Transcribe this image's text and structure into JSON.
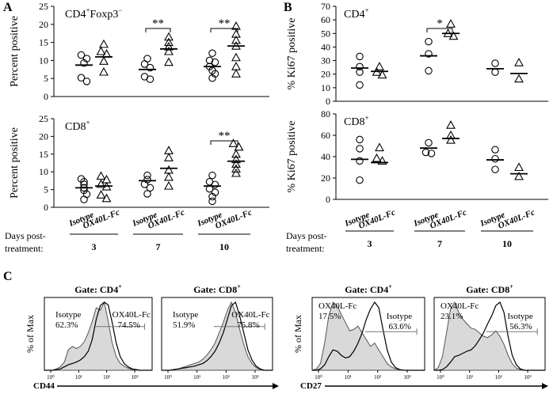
{
  "panel_letters": [
    "A",
    "B",
    "C"
  ],
  "x_groups": {
    "arms": [
      "Isotype",
      "OX40L-Fc"
    ],
    "days": [
      "3",
      "7",
      "10"
    ],
    "days_label": [
      "Days post-",
      "treatment:"
    ]
  },
  "chart_data": [
    {
      "id": "A-top",
      "type": "scatter",
      "panel": "A",
      "title": "CD4+Foxp3−",
      "ylabel": "Percent positive",
      "ylim": [
        0,
        25
      ],
      "yticks": [
        0,
        5,
        10,
        15,
        20,
        25
      ],
      "groups": [
        {
          "day": "3",
          "arm": "Isotype",
          "marker": "circle",
          "mean": 8.7,
          "values": [
            11.5,
            10.5,
            9.3,
            5.2,
            4.2
          ]
        },
        {
          "day": "3",
          "arm": "OX40L-Fc",
          "marker": "triangle",
          "mean": 11.0,
          "values": [
            14.5,
            12.5,
            11.8,
            9.8,
            6.8
          ]
        },
        {
          "day": "7",
          "arm": "Isotype",
          "marker": "circle",
          "mean": 7.5,
          "values": [
            10.5,
            9.0,
            8.0,
            5.5,
            4.8
          ]
        },
        {
          "day": "7",
          "arm": "OX40L-Fc",
          "marker": "triangle",
          "mean": 13.2,
          "values": [
            16.5,
            15.0,
            13.8,
            12.5,
            9.5
          ]
        },
        {
          "day": "10",
          "arm": "Isotype",
          "marker": "circle",
          "mean": 8.3,
          "values": [
            12.0,
            10.0,
            9.5,
            8.3,
            7.2,
            6.3,
            5.1
          ]
        },
        {
          "day": "10",
          "arm": "OX40L-Fc",
          "marker": "triangle",
          "mean": 14.0,
          "values": [
            19.5,
            17.3,
            15.6,
            14.0,
            10.8,
            8.3,
            6.3
          ]
        }
      ],
      "significance": [
        {
          "day": "7",
          "label": "**"
        },
        {
          "day": "10",
          "label": "**"
        }
      ]
    },
    {
      "id": "A-bottom",
      "type": "scatter",
      "panel": "A",
      "title": "CD8+",
      "ylabel": "Percent positive",
      "ylim": [
        0,
        25
      ],
      "yticks": [
        0,
        5,
        10,
        15,
        20,
        25
      ],
      "groups": [
        {
          "day": "3",
          "arm": "Isotype",
          "marker": "circle",
          "mean": 5.5,
          "values": [
            8.0,
            7.2,
            6.5,
            5.5,
            4.8,
            3.7,
            2.2
          ]
        },
        {
          "day": "3",
          "arm": "OX40L-Fc",
          "marker": "triangle",
          "mean": 6.0,
          "values": [
            8.8,
            7.8,
            6.5,
            5.8,
            3.5,
            2.5
          ]
        },
        {
          "day": "7",
          "arm": "Isotype",
          "marker": "circle",
          "mean": 7.5,
          "values": [
            9.0,
            7.8,
            6.5,
            5.5,
            3.8
          ]
        },
        {
          "day": "7",
          "arm": "OX40L-Fc",
          "marker": "triangle",
          "mean": 11.0,
          "values": [
            16.0,
            14.0,
            10.5,
            8.5,
            6.0
          ]
        },
        {
          "day": "10",
          "arm": "Isotype",
          "marker": "circle",
          "mean": 6.0,
          "values": [
            9.0,
            7.2,
            6.4,
            5.2,
            4.2,
            3.0,
            1.7
          ]
        },
        {
          "day": "10",
          "arm": "OX40L-Fc",
          "marker": "triangle",
          "mean": 13.0,
          "values": [
            18.0,
            17.0,
            15.0,
            13.5,
            12.2,
            10.8,
            9.6
          ]
        }
      ],
      "significance": [
        {
          "day": "10",
          "label": "**"
        }
      ]
    },
    {
      "id": "B-top",
      "type": "scatter",
      "panel": "B",
      "title": "CD4+",
      "ylabel": "% Ki67 positive",
      "ylim": [
        0,
        70
      ],
      "yticks": [
        0,
        10,
        20,
        30,
        40,
        50,
        60,
        70
      ],
      "groups": [
        {
          "day": "3",
          "arm": "Isotype",
          "marker": "circle",
          "mean": 24.5,
          "values": [
            33.0,
            25.5,
            21.5,
            12.0
          ]
        },
        {
          "day": "3",
          "arm": "OX40L-Fc",
          "marker": "triangle",
          "mean": 22.0,
          "values": [
            25.5,
            21.5,
            19.5
          ]
        },
        {
          "day": "7",
          "arm": "Isotype",
          "marker": "circle",
          "mean": 33.5,
          "values": [
            44.0,
            35.0,
            22.5
          ]
        },
        {
          "day": "7",
          "arm": "OX40L-Fc",
          "marker": "triangle",
          "mean": 50.0,
          "values": [
            57.0,
            50.0,
            48.0
          ]
        },
        {
          "day": "10",
          "arm": "Isotype",
          "marker": "circle",
          "mean": 24.0,
          "values": [
            28.0,
            21.5
          ]
        },
        {
          "day": "10",
          "arm": "OX40L-Fc",
          "marker": "triangle",
          "mean": 20.5,
          "values": [
            28.5,
            16.5
          ]
        }
      ],
      "significance": [
        {
          "day": "7",
          "label": "*"
        }
      ]
    },
    {
      "id": "B-bottom",
      "type": "scatter",
      "panel": "B",
      "title": "CD8+",
      "ylabel": "% Ki67 positive",
      "ylim": [
        0,
        80
      ],
      "yticks": [
        0,
        20,
        40,
        60,
        80
      ],
      "groups": [
        {
          "day": "3",
          "arm": "Isotype",
          "marker": "circle",
          "mean": 37.5,
          "values": [
            56.0,
            47.5,
            36.0,
            18.0
          ]
        },
        {
          "day": "3",
          "arm": "OX40L-Fc",
          "marker": "triangle",
          "mean": 34.5,
          "values": [
            48.5,
            38.5,
            36.0
          ]
        },
        {
          "day": "7",
          "arm": "Isotype",
          "marker": "circle",
          "mean": 48.0,
          "values": [
            53.0,
            44.0,
            43.0
          ]
        },
        {
          "day": "7",
          "arm": "OX40L-Fc",
          "marker": "triangle",
          "mean": 57.0,
          "values": [
            69.5,
            60.0,
            55.5
          ]
        },
        {
          "day": "10",
          "arm": "Isotype",
          "marker": "circle",
          "mean": 37.0,
          "values": [
            46.5,
            38.0,
            28.0
          ]
        },
        {
          "day": "10",
          "arm": "OX40L-Fc",
          "marker": "triangle",
          "mean": 24.0,
          "values": [
            30.0,
            21.5
          ]
        }
      ],
      "significance": []
    },
    {
      "id": "C-1",
      "type": "histogram_overlay",
      "panel": "C",
      "title": "Gate: CD4+",
      "marker": "CD44",
      "ylabel": "% of Max",
      "x_ticks": [
        "10⁰",
        "10¹",
        "10²",
        "10³"
      ],
      "series": [
        {
          "name": "Isotype",
          "label": "Isotype",
          "percent": "62.3%",
          "filled": true,
          "profile": [
            0,
            0,
            0,
            2,
            5,
            12,
            30,
            35,
            32,
            35,
            42,
            55,
            72,
            92,
            88,
            100,
            72,
            40,
            20,
            10,
            6,
            3,
            1,
            0,
            0,
            0,
            0,
            0
          ]
        },
        {
          "name": "OX40L-Fc",
          "label": "OX40L-Fc",
          "percent": "74.5%",
          "filled": false,
          "profile": [
            0,
            0,
            0,
            1,
            2,
            5,
            8,
            10,
            12,
            15,
            20,
            28,
            45,
            75,
            95,
            100,
            96,
            70,
            40,
            20,
            10,
            5,
            2,
            1,
            0,
            0,
            0,
            0
          ]
        }
      ],
      "gate_label_side": "left"
    },
    {
      "id": "C-2",
      "type": "histogram_overlay",
      "panel": "C",
      "title": "Gate: CD8+",
      "marker": "CD44",
      "ylabel": "% of Max",
      "x_ticks": [
        "10⁰",
        "10¹",
        "10²",
        "10³"
      ],
      "series": [
        {
          "name": "Isotype",
          "label": "Isotype",
          "percent": "51.9%",
          "filled": true,
          "profile": [
            0,
            0,
            0,
            1,
            2,
            4,
            6,
            8,
            10,
            12,
            16,
            22,
            30,
            40,
            55,
            70,
            88,
            100,
            85,
            60,
            38,
            20,
            10,
            4,
            1,
            0,
            0,
            0
          ]
        },
        {
          "name": "OX40L-Fc",
          "label": "OX40L-Fc",
          "percent": "75.8%",
          "filled": false,
          "profile": [
            0,
            0,
            0,
            1,
            2,
            3,
            4,
            5,
            6,
            8,
            10,
            14,
            20,
            28,
            40,
            55,
            75,
            95,
            100,
            80,
            55,
            30,
            15,
            6,
            2,
            0,
            0,
            0
          ]
        }
      ],
      "gate_label_side": "left"
    },
    {
      "id": "C-3",
      "type": "histogram_overlay",
      "panel": "C",
      "title": "Gate: CD4+",
      "marker": "CD27",
      "ylabel": "% of Max",
      "x_ticks": [
        "10⁰",
        "10¹",
        "10²",
        "10³"
      ],
      "series": [
        {
          "name": "OX40L-Fc",
          "label": "OX40L-Fc",
          "percent": "17.5%",
          "filled": true,
          "profile": [
            0,
            2,
            10,
            40,
            80,
            100,
            95,
            82,
            70,
            58,
            60,
            65,
            55,
            45,
            35,
            40,
            30,
            20,
            10,
            5,
            2,
            0,
            0,
            0,
            0,
            0,
            0,
            0
          ]
        },
        {
          "name": "Isotype",
          "label": "Isotype",
          "percent": "63.6%",
          "filled": false,
          "profile": [
            0,
            0,
            2,
            8,
            20,
            30,
            28,
            22,
            18,
            20,
            28,
            40,
            55,
            75,
            90,
            100,
            92,
            60,
            30,
            12,
            4,
            1,
            0,
            0,
            0,
            0,
            0,
            0
          ]
        }
      ],
      "gate_label_side": "right"
    },
    {
      "id": "C-4",
      "type": "histogram_overlay",
      "panel": "C",
      "title": "Gate: CD8+",
      "marker": "CD27",
      "ylabel": "% of Max",
      "x_ticks": [
        "10⁰",
        "10¹",
        "10²",
        "10³"
      ],
      "series": [
        {
          "name": "OX40L-Fc",
          "label": "OX40L-Fc",
          "percent": "23.1%",
          "filled": true,
          "profile": [
            0,
            4,
            20,
            55,
            90,
            100,
            85,
            75,
            68,
            62,
            60,
            55,
            50,
            48,
            52,
            58,
            50,
            38,
            22,
            10,
            3,
            1,
            0,
            0,
            0,
            0,
            0,
            0
          ]
        },
        {
          "name": "Isotype",
          "label": "Isotype",
          "percent": "56.3%",
          "filled": false,
          "profile": [
            0,
            0,
            1,
            5,
            12,
            20,
            22,
            25,
            28,
            30,
            36,
            45,
            55,
            68,
            80,
            95,
            100,
            85,
            50,
            22,
            8,
            2,
            0,
            0,
            0,
            0,
            0,
            0
          ]
        }
      ],
      "gate_label_side": "right"
    }
  ]
}
